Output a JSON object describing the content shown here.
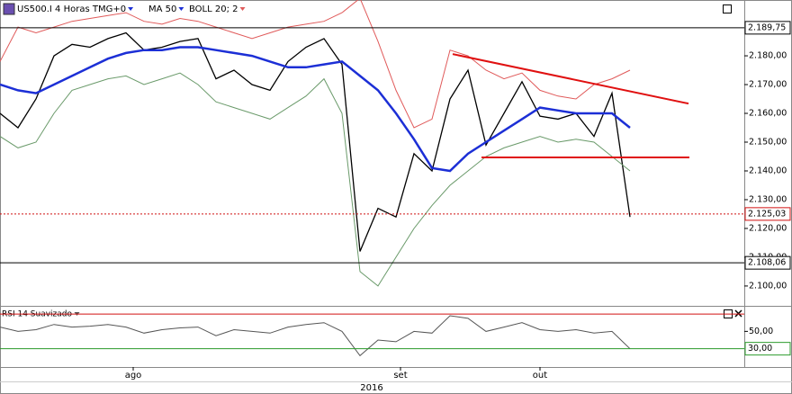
{
  "chart_data": [
    {
      "type": "line",
      "title": "US500.I 4 Horas TMG+0",
      "x": [
        0,
        4,
        8,
        12,
        16,
        20,
        24,
        28,
        32,
        36,
        40,
        44,
        48,
        52,
        56,
        60,
        64,
        68,
        72,
        76,
        80,
        84,
        88,
        92,
        96,
        100,
        104,
        108,
        112,
        116,
        120,
        124,
        128,
        132,
        136,
        140
      ],
      "xlim": [
        0,
        165.4
      ],
      "xticks": [
        {
          "value": 29.6,
          "label": "ago"
        },
        {
          "value": 89,
          "label": "set"
        },
        {
          "value": 120,
          "label": "out"
        }
      ],
      "xlabel": "2016",
      "ylim": [
        2093.1,
        2199.4
      ],
      "yticks": [
        {
          "value": 2100,
          "label": "2.100,00"
        },
        {
          "value": 2110,
          "label": "2.110,00"
        },
        {
          "value": 2120,
          "label": "2.120,00"
        },
        {
          "value": 2130,
          "label": "2.130,00"
        },
        {
          "value": 2140,
          "label": "2.140,00"
        },
        {
          "value": 2150,
          "label": "2.150,00"
        },
        {
          "value": 2160,
          "label": "2.160,00"
        },
        {
          "value": 2170,
          "label": "2.170,00"
        },
        {
          "value": 2180,
          "label": "2.180,00"
        }
      ],
      "series": [
        {
          "name": "US500.I 4 Horas TMG+0",
          "color": "#000000",
          "values": [
            2160,
            2155,
            2165,
            2180,
            2184,
            2183,
            2186,
            2188,
            2182,
            2183,
            2185,
            2186,
            2172,
            2175,
            2170,
            2168,
            2178,
            2183,
            2186,
            2177,
            2112,
            2127,
            2124,
            2146,
            2140,
            2165,
            2175,
            2149,
            2160,
            2171,
            2159,
            2158,
            2160,
            2152,
            2167,
            2124
          ]
        },
        {
          "name": "MA 50",
          "color": "#1c2fd6",
          "values": [
            2170,
            2168,
            2167,
            2170,
            2173,
            2176,
            2179,
            2181,
            2182,
            2182,
            2183,
            2183,
            2182,
            2181,
            2180,
            2178,
            2176,
            2176,
            2177,
            2178,
            2173,
            2168,
            2160,
            2151,
            2141,
            2140,
            2146,
            2150,
            2154,
            2158,
            2162,
            2161,
            2160,
            2160,
            2160,
            2155
          ]
        },
        {
          "name": "BOLL 20; 2",
          "color": "#e05a5a",
          "values": [
            2178,
            2190,
            2188,
            2190,
            2192,
            2193,
            2194,
            2195,
            2192,
            2191,
            2193,
            2192,
            2190,
            2188,
            2186,
            2188,
            2190,
            2191,
            2192,
            2195,
            2200,
            2185,
            2168,
            2155,
            2158,
            2182,
            2180,
            2175,
            2172,
            2174,
            2168,
            2166,
            2165,
            2170,
            2172,
            2175
          ]
        },
        {
          "color": "#6a9a6a",
          "values": [
            2152,
            2148,
            2150,
            2160,
            2168,
            2170,
            2172,
            2173,
            2170,
            2172,
            2174,
            2170,
            2164,
            2162,
            2160,
            2158,
            2162,
            2166,
            2172,
            2160,
            2105,
            2100,
            2110,
            2120,
            2128,
            2135,
            2140,
            2145,
            2148,
            2150,
            2152,
            2150,
            2151,
            2150,
            2145,
            2140
          ]
        }
      ],
      "levels": [
        {
          "value": 2189.75,
          "label": "2.189,75",
          "color": "#000000",
          "dashed": false
        },
        {
          "value": 2125.03,
          "label": "2.125,03",
          "color": "#d01010",
          "dashed": true
        },
        {
          "value": 2108.06,
          "label": "2.108,06",
          "color": "#000000",
          "dashed": false
        }
      ],
      "trendlines": [
        {
          "x": [
            100.6,
            153
          ],
          "values": [
            2180.6,
            2163.4
          ],
          "color": "#e01010"
        },
        {
          "x": [
            107,
            153.2
          ],
          "values": [
            2144.7,
            2144.7
          ],
          "color": "#e01010"
        }
      ]
    },
    {
      "type": "line",
      "title": "RSI 14 Suavizado",
      "x": [
        0,
        4,
        8,
        12,
        16,
        20,
        24,
        28,
        32,
        36,
        40,
        44,
        48,
        52,
        56,
        60,
        64,
        68,
        72,
        76,
        80,
        84,
        88,
        92,
        96,
        100,
        104,
        108,
        112,
        116,
        120,
        124,
        128,
        132,
        136,
        140
      ],
      "xlim": [
        0,
        165.4
      ],
      "ylim": [
        8.9,
        78.4
      ],
      "yticks": [
        {
          "value": 50,
          "label": "50,00"
        }
      ],
      "series": [
        {
          "color": "#555555",
          "values": [
            55,
            50,
            52,
            58,
            55,
            56,
            58,
            55,
            48,
            52,
            54,
            55,
            45,
            52,
            50,
            48,
            55,
            58,
            60,
            50,
            22,
            40,
            38,
            50,
            48,
            68,
            65,
            50,
            55,
            60,
            52,
            50,
            52,
            48,
            50,
            30
          ]
        }
      ],
      "levels": [
        {
          "value": 70,
          "color": "#d01010",
          "dashed": false
        },
        {
          "value": 30,
          "label": "30,00",
          "color": "#2a9a2a",
          "dashed": false
        }
      ]
    }
  ]
}
